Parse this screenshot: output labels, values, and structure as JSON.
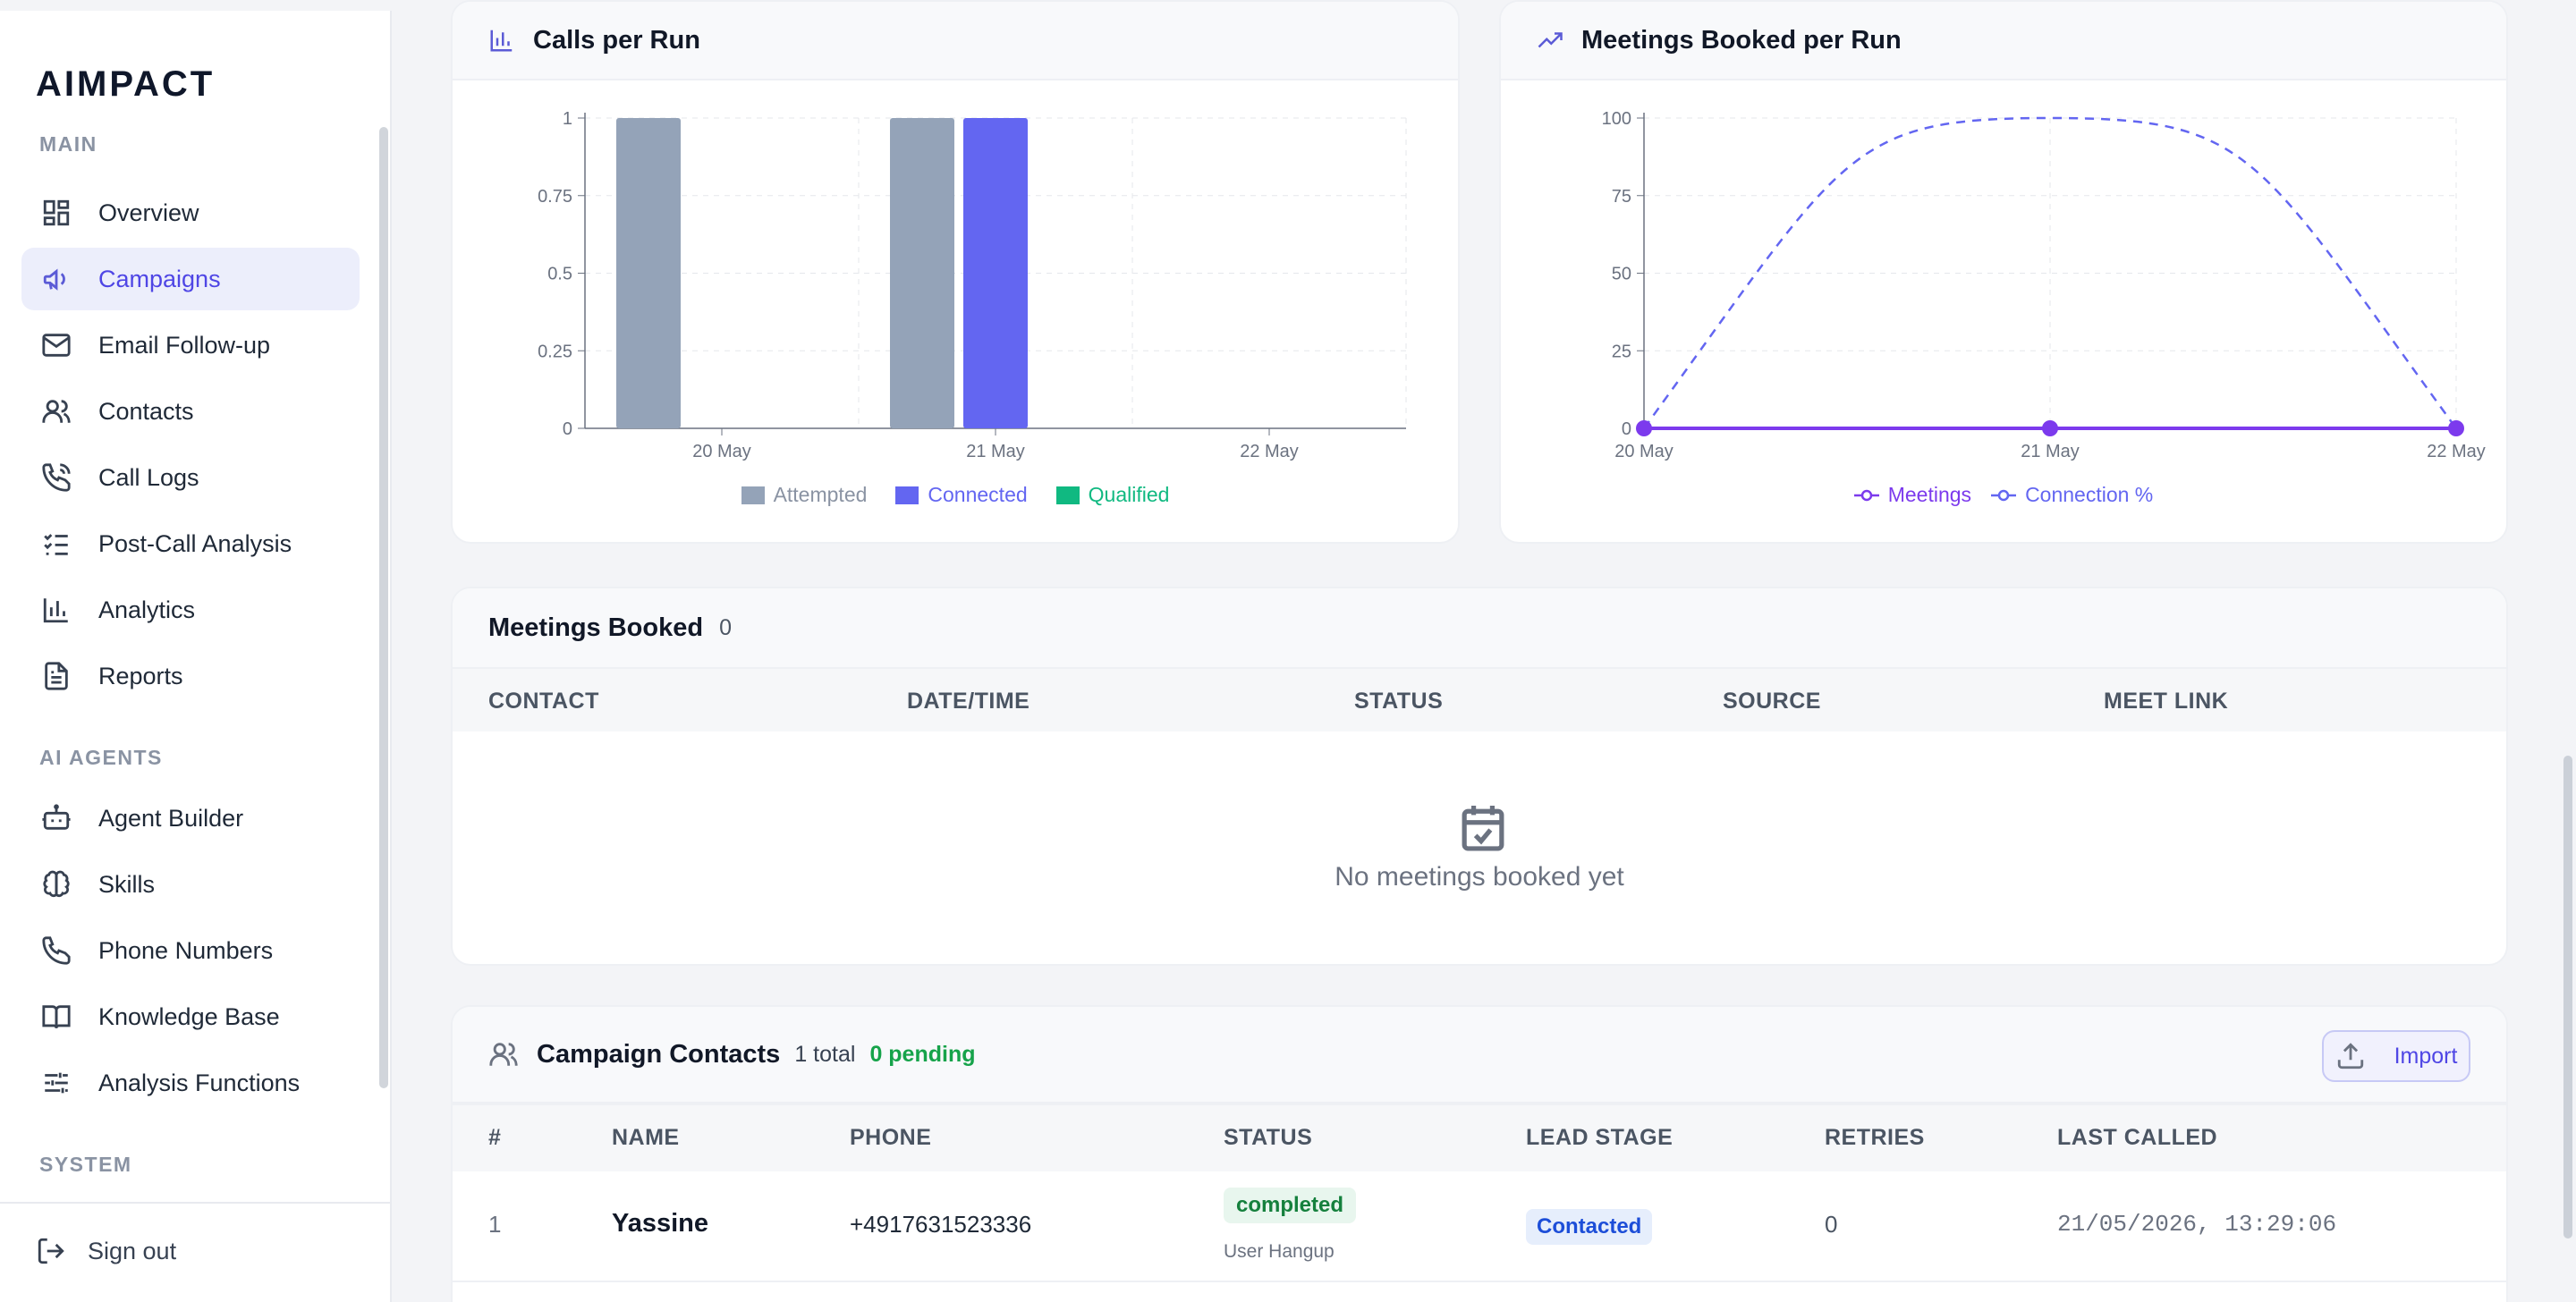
{
  "brand": {
    "logo_text": "AIMPACT"
  },
  "sidebar": {
    "sections": [
      {
        "label": "MAIN"
      },
      {
        "label": "AI AGENTS"
      },
      {
        "label": "SYSTEM"
      }
    ],
    "items": [
      {
        "label": "Overview",
        "icon": "grid-icon"
      },
      {
        "label": "Campaigns",
        "icon": "megaphone-icon",
        "active": true
      },
      {
        "label": "Email Follow-up",
        "icon": "mail-icon"
      },
      {
        "label": "Contacts",
        "icon": "users-icon"
      },
      {
        "label": "Call Logs",
        "icon": "phone-call-icon"
      },
      {
        "label": "Post-Call Analysis",
        "icon": "checklist-icon"
      },
      {
        "label": "Analytics",
        "icon": "bar-chart-icon"
      },
      {
        "label": "Reports",
        "icon": "file-text-icon"
      },
      {
        "label": "Agent Builder",
        "icon": "bot-icon"
      },
      {
        "label": "Skills",
        "icon": "brain-icon"
      },
      {
        "label": "Phone Numbers",
        "icon": "phone-icon"
      },
      {
        "label": "Knowledge Base",
        "icon": "book-icon"
      },
      {
        "label": "Analysis Functions",
        "icon": "sliders-icon"
      }
    ],
    "signout_label": "Sign out"
  },
  "calls_chart": {
    "title": "Calls per Run"
  },
  "meetings_chart": {
    "title": "Meetings Booked per Run"
  },
  "chart_data": [
    {
      "type": "bar",
      "title": "Calls per Run",
      "categories": [
        "20 May",
        "21 May",
        "22 May"
      ],
      "series": [
        {
          "name": "Attempted",
          "color": "#94a3b8",
          "values": [
            1,
            1,
            0
          ]
        },
        {
          "name": "Connected",
          "color": "#6366f1",
          "values": [
            0,
            1,
            0
          ]
        },
        {
          "name": "Qualified",
          "color": "#10b981",
          "values": [
            0,
            0,
            0
          ]
        }
      ],
      "yticks": [
        "0",
        "0.25",
        "0.5",
        "0.75",
        "1"
      ],
      "ylim": [
        0,
        1
      ],
      "grid": true,
      "legend": "bottom"
    },
    {
      "type": "line",
      "title": "Meetings Booked per Run",
      "categories": [
        "20 May",
        "21 May",
        "22 May"
      ],
      "series": [
        {
          "name": "Meetings",
          "color": "#7c3aed",
          "values": [
            0,
            0,
            0
          ],
          "style": "solid"
        },
        {
          "name": "Connection %",
          "color": "#6366f1",
          "values": [
            0,
            100,
            0
          ],
          "style": "dashed"
        }
      ],
      "yticks": [
        "0",
        "25",
        "50",
        "75",
        "100"
      ],
      "ylim": [
        0,
        100
      ],
      "grid": true,
      "legend": "bottom"
    }
  ],
  "meetings_table": {
    "title": "Meetings Booked",
    "count": "0",
    "columns": [
      "CONTACT",
      "DATE/TIME",
      "STATUS",
      "SOURCE",
      "MEET LINK"
    ],
    "empty_text": "No meetings booked yet",
    "empty_icon": "calendar-check-icon"
  },
  "contacts_table": {
    "title": "Campaign Contacts",
    "total": "1 total",
    "pending": "0 pending",
    "import_label": "Import",
    "columns": [
      "#",
      "NAME",
      "PHONE",
      "STATUS",
      "LEAD STAGE",
      "RETRIES",
      "LAST CALLED"
    ],
    "rows": [
      {
        "index": "1",
        "name": "Yassine",
        "phone": "+4917631523336",
        "status": "completed",
        "status_detail": "User Hangup",
        "lead_stage": "Contacted",
        "retries": "0",
        "last_called": "21/05/2026, 13:29:06"
      }
    ]
  }
}
